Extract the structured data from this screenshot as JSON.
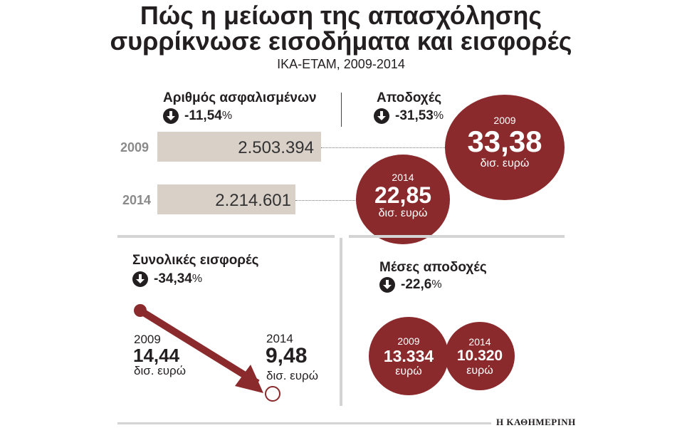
{
  "title_line1": "Πώς η μείωση της απασχόλησης",
  "title_line2": "συρρίκνωσε εισοδήματα και εισφορές",
  "subtitle": "ΙΚΑ-ΕΤΑΜ, 2009-2014",
  "insured": {
    "title": "Αριθμός ασφαλισμένων",
    "change": "-11,54",
    "pct": "%",
    "rows": [
      {
        "year": "2009",
        "value_label": "2.503.394"
      },
      {
        "year": "2014",
        "value_label": "2.214.601"
      }
    ]
  },
  "earnings": {
    "title": "Αποδοχές",
    "change": "-31,53",
    "pct": "%",
    "circles": [
      {
        "year": "2009",
        "value": "33,38",
        "unit": "δισ. ευρώ"
      },
      {
        "year": "2014",
        "value": "22,85",
        "unit": "δισ. ευρώ"
      }
    ]
  },
  "contributions": {
    "title": "Συνολικές εισφορές",
    "change": "-34,34",
    "pct": "%",
    "start": {
      "year": "2009",
      "value": "14,44",
      "unit": "δισ. ευρώ"
    },
    "end": {
      "year": "2014",
      "value": "9,48",
      "unit": "δισ. ευρώ"
    }
  },
  "average_earnings": {
    "title": "Μέσες αποδοχές",
    "change": "-22,6",
    "pct": "%",
    "circles": [
      {
        "year": "2009",
        "value": "13.334",
        "unit": "ευρώ"
      },
      {
        "year": "2014",
        "value": "10.320",
        "unit": "ευρώ"
      }
    ]
  },
  "source_logo": "Η ΚΑΘΗΜΕΡΙΝΗ",
  "colors": {
    "accent": "#8b2a2c",
    "bar": "#d9d0c8",
    "text": "#231f20",
    "rule": "#d4d4d4"
  },
  "chart_data": [
    {
      "type": "bar",
      "title": "Αριθμός ασφαλισμένων",
      "categories": [
        "2009",
        "2014"
      ],
      "values": [
        2503394,
        2214601
      ]
    },
    {
      "type": "bubble",
      "title": "Αποδοχές",
      "categories": [
        "2009",
        "2014"
      ],
      "values": [
        33.38,
        22.85
      ],
      "unit": "δισ. ευρώ"
    },
    {
      "type": "line",
      "title": "Συνολικές εισφορές",
      "categories": [
        "2009",
        "2014"
      ],
      "values": [
        14.44,
        9.48
      ],
      "unit": "δισ. ευρώ"
    },
    {
      "type": "bubble",
      "title": "Μέσες αποδοχές",
      "categories": [
        "2009",
        "2014"
      ],
      "values": [
        13334,
        10320
      ],
      "unit": "ευρώ"
    }
  ]
}
